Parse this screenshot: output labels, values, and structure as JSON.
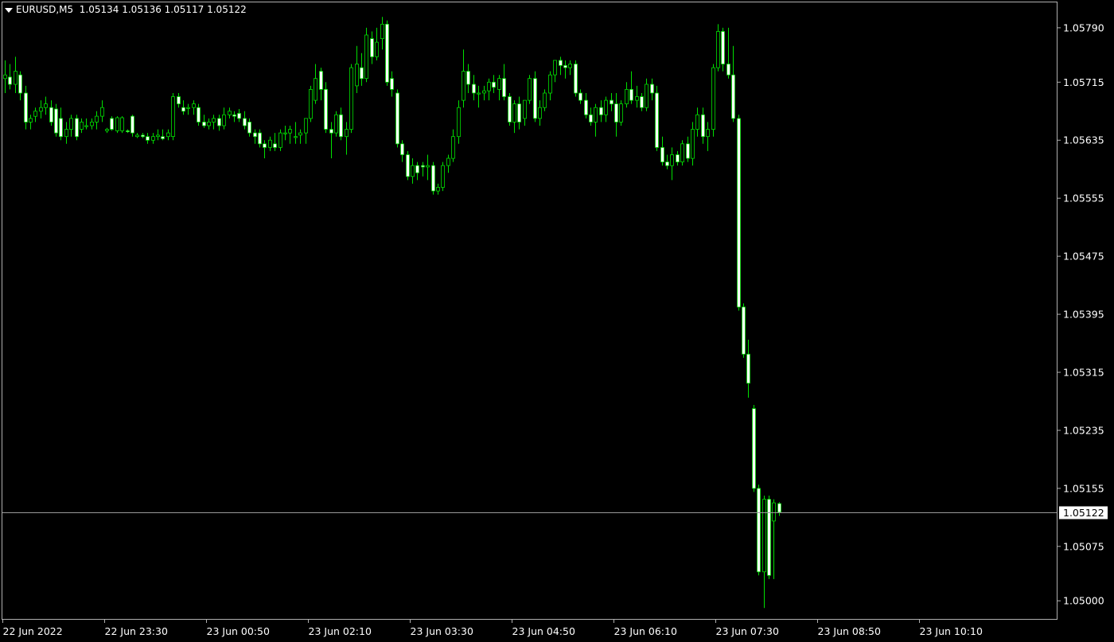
{
  "header": {
    "symbol": "EURUSD,M5",
    "ohlc": "1.05134 1.05136 1.05117 1.05122"
  },
  "chart_data": {
    "type": "candlestick",
    "ylim": [
      1.04975,
      1.05825
    ],
    "yticks": [
      "1.05790",
      "1.05715",
      "1.05635",
      "1.05555",
      "1.05475",
      "1.05395",
      "1.05315",
      "1.05235",
      "1.05155",
      "1.05075",
      "1.05000"
    ],
    "xticks": [
      "22 Jun 2022",
      "22 Jun 23:30",
      "23 Jun 00:50",
      "23 Jun 02:10",
      "23 Jun 03:30",
      "23 Jun 04:50",
      "23 Jun 06:10",
      "23 Jun 07:30",
      "23 Jun 08:50",
      "23 Jun 10:10"
    ],
    "current_price": "1.05122",
    "candles": [
      [
        1.0572,
        1.05745,
        1.057,
        1.05725
      ],
      [
        1.05722,
        1.0574,
        1.05705,
        1.05712
      ],
      [
        1.05712,
        1.0575,
        1.057,
        1.0573
      ],
      [
        1.05725,
        1.0573,
        1.0569,
        1.057
      ],
      [
        1.057,
        1.0571,
        1.0565,
        1.0566
      ],
      [
        1.0566,
        1.0567,
        1.0565,
        1.05665
      ],
      [
        1.05668,
        1.0568,
        1.0566,
        1.05675
      ],
      [
        1.05675,
        1.0569,
        1.05665,
        1.0568
      ],
      [
        1.0568,
        1.05695,
        1.0567,
        1.05685
      ],
      [
        1.0568,
        1.0569,
        1.05655,
        1.0566
      ],
      [
        1.05678,
        1.05685,
        1.0564,
        1.05645
      ],
      [
        1.05665,
        1.0568,
        1.05635,
        1.0564
      ],
      [
        1.0564,
        1.0566,
        1.0563,
        1.0565
      ],
      [
        1.0565,
        1.0567,
        1.0564,
        1.05665
      ],
      [
        1.05665,
        1.0567,
        1.05635,
        1.0564
      ],
      [
        1.0565,
        1.05665,
        1.05645,
        1.0566
      ],
      [
        1.05655,
        1.05665,
        1.0565,
        1.05655
      ],
      [
        1.05655,
        1.05665,
        1.0565,
        1.0566
      ],
      [
        1.0566,
        1.05675,
        1.0565,
        1.05668
      ],
      [
        1.05668,
        1.0569,
        1.0566,
        1.0568
      ],
      [
        1.05648,
        1.05652,
        1.05645,
        1.0565
      ],
      [
        1.05665,
        1.05668,
        1.05648,
        1.0565
      ],
      [
        1.05648,
        1.05668,
        1.05645,
        1.05666
      ],
      [
        1.05648,
        1.05668,
        1.05645,
        1.05666
      ],
      [
        1.05648,
        1.0565,
        1.05645,
        1.05647
      ],
      [
        1.05668,
        1.0567,
        1.0564,
        1.05645
      ],
      [
        1.0564,
        1.05645,
        1.05638,
        1.05642
      ],
      [
        1.05642,
        1.05645,
        1.05638,
        1.0564
      ],
      [
        1.0564,
        1.05645,
        1.0563,
        1.05635
      ],
      [
        1.05635,
        1.05645,
        1.0563,
        1.0564
      ],
      [
        1.0564,
        1.0565,
        1.05635,
        1.05642
      ],
      [
        1.0564,
        1.0565,
        1.05635,
        1.05637
      ],
      [
        1.0564,
        1.0565,
        1.05635,
        1.05645
      ],
      [
        1.0564,
        1.057,
        1.05635,
        1.05695
      ],
      [
        1.05695,
        1.057,
        1.0568,
        1.05685
      ],
      [
        1.0568,
        1.0569,
        1.0567,
        1.05675
      ],
      [
        1.0568,
        1.05685,
        1.0567,
        1.0568
      ],
      [
        1.0568,
        1.0569,
        1.0567,
        1.05685
      ],
      [
        1.0568,
        1.05685,
        1.05655,
        1.0566
      ],
      [
        1.0566,
        1.0567,
        1.05652,
        1.05655
      ],
      [
        1.05655,
        1.05665,
        1.0565,
        1.0566
      ],
      [
        1.0566,
        1.0567,
        1.0565,
        1.05665
      ],
      [
        1.05665,
        1.0567,
        1.05648,
        1.05655
      ],
      [
        1.05655,
        1.0568,
        1.0565,
        1.0567
      ],
      [
        1.0567,
        1.0568,
        1.05665,
        1.05675
      ],
      [
        1.0567,
        1.05675,
        1.0566,
        1.05668
      ],
      [
        1.05672,
        1.05678,
        1.0566,
        1.05665
      ],
      [
        1.05665,
        1.05675,
        1.0565,
        1.05655
      ],
      [
        1.0566,
        1.05665,
        1.0564,
        1.05645
      ],
      [
        1.05645,
        1.0565,
        1.0563,
        1.0564
      ],
      [
        1.05645,
        1.0565,
        1.05625,
        1.0563
      ],
      [
        1.0563,
        1.05635,
        1.0561,
        1.05625
      ],
      [
        1.05625,
        1.0564,
        1.0562,
        1.05635
      ],
      [
        1.0563,
        1.05645,
        1.0562,
        1.05625
      ],
      [
        1.05625,
        1.0565,
        1.0562,
        1.05645
      ],
      [
        1.05645,
        1.05655,
        1.05635,
        1.05645
      ],
      [
        1.05645,
        1.05655,
        1.0563,
        1.0565
      ],
      [
        1.0564,
        1.0566,
        1.0563,
        1.0564
      ],
      [
        1.05642,
        1.0565,
        1.0563,
        1.05645
      ],
      [
        1.05645,
        1.05665,
        1.0563,
        1.05665
      ],
      [
        1.05665,
        1.0571,
        1.0566,
        1.05705
      ],
      [
        1.0569,
        1.0574,
        1.05685,
        1.0572
      ],
      [
        1.0573,
        1.05735,
        1.0569,
        1.05705
      ],
      [
        1.05705,
        1.05715,
        1.05645,
        1.0565
      ],
      [
        1.0565,
        1.0566,
        1.0561,
        1.05645
      ],
      [
        1.05645,
        1.05675,
        1.0564,
        1.0567
      ],
      [
        1.0567,
        1.0568,
        1.05635,
        1.0564
      ],
      [
        1.0564,
        1.0566,
        1.05615,
        1.0565
      ],
      [
        1.0565,
        1.0574,
        1.05645,
        1.05735
      ],
      [
        1.0571,
        1.05765,
        1.057,
        1.0574
      ],
      [
        1.05735,
        1.05755,
        1.0571,
        1.0572
      ],
      [
        1.0572,
        1.0579,
        1.05715,
        1.0578
      ],
      [
        1.05775,
        1.05785,
        1.0574,
        1.0575
      ],
      [
        1.0575,
        1.0579,
        1.05745,
        1.0577
      ],
      [
        1.05775,
        1.05805,
        1.0576,
        1.05795
      ],
      [
        1.05795,
        1.058,
        1.0571,
        1.05715
      ],
      [
        1.0572,
        1.0573,
        1.05695,
        1.05705
      ],
      [
        1.057,
        1.05705,
        1.05625,
        1.0563
      ],
      [
        1.0563,
        1.05635,
        1.05605,
        1.05615
      ],
      [
        1.05615,
        1.0562,
        1.0558,
        1.05585
      ],
      [
        1.05585,
        1.0561,
        1.05575,
        1.056
      ],
      [
        1.056,
        1.05605,
        1.0558,
        1.0559
      ],
      [
        1.056,
        1.05605,
        1.05585,
        1.05598
      ],
      [
        1.05598,
        1.05615,
        1.0558,
        1.056
      ],
      [
        1.056,
        1.05605,
        1.0556,
        1.05565
      ],
      [
        1.05565,
        1.05575,
        1.0556,
        1.0557
      ],
      [
        1.0557,
        1.05605,
        1.05565,
        1.056
      ],
      [
        1.056,
        1.05615,
        1.0559,
        1.0561
      ],
      [
        1.0561,
        1.0565,
        1.05605,
        1.0564
      ],
      [
        1.0564,
        1.0569,
        1.0563,
        1.0568
      ],
      [
        1.0569,
        1.0576,
        1.0568,
        1.0573
      ],
      [
        1.0573,
        1.0574,
        1.057,
        1.05712
      ],
      [
        1.05712,
        1.05725,
        1.0569,
        1.057
      ],
      [
        1.057,
        1.0571,
        1.0568,
        1.057
      ],
      [
        1.057,
        1.0571,
        1.0569,
        1.05703
      ],
      [
        1.05703,
        1.0572,
        1.0569,
        1.05715
      ],
      [
        1.05715,
        1.05725,
        1.057,
        1.05708
      ],
      [
        1.05705,
        1.05725,
        1.0569,
        1.0572
      ],
      [
        1.0572,
        1.0574,
        1.0569,
        1.05695
      ],
      [
        1.05695,
        1.057,
        1.05655,
        1.0566
      ],
      [
        1.0566,
        1.0569,
        1.05645,
        1.05685
      ],
      [
        1.05685,
        1.05695,
        1.0565,
        1.0566
      ],
      [
        1.05665,
        1.0569,
        1.05655,
        1.0569
      ],
      [
        1.0569,
        1.05725,
        1.05685,
        1.0572
      ],
      [
        1.0572,
        1.0573,
        1.0566,
        1.05665
      ],
      [
        1.05665,
        1.0569,
        1.05655,
        1.0568
      ],
      [
        1.0568,
        1.05705,
        1.05675,
        1.057
      ],
      [
        1.057,
        1.0573,
        1.0569,
        1.05725
      ],
      [
        1.05725,
        1.05745,
        1.05715,
        1.05745
      ],
      [
        1.05745,
        1.0575,
        1.05725,
        1.05738
      ],
      [
        1.05738,
        1.05745,
        1.0572,
        1.05735
      ],
      [
        1.05735,
        1.05745,
        1.05725,
        1.0574
      ],
      [
        1.0574,
        1.05745,
        1.05695,
        1.057
      ],
      [
        1.057,
        1.05705,
        1.05685,
        1.0569
      ],
      [
        1.0569,
        1.057,
        1.05665,
        1.0567
      ],
      [
        1.0567,
        1.0568,
        1.05655,
        1.0566
      ],
      [
        1.0566,
        1.05685,
        1.0564,
        1.0568
      ],
      [
        1.0568,
        1.0569,
        1.0566,
        1.0567
      ],
      [
        1.0567,
        1.05695,
        1.0566,
        1.0569
      ],
      [
        1.0569,
        1.057,
        1.05675,
        1.05685
      ],
      [
        1.05685,
        1.057,
        1.0564,
        1.0566
      ],
      [
        1.0566,
        1.0569,
        1.05655,
        1.05685
      ],
      [
        1.05685,
        1.05715,
        1.0568,
        1.05705
      ],
      [
        1.05705,
        1.0573,
        1.05685,
        1.0569
      ],
      [
        1.0569,
        1.0571,
        1.0568,
        1.05695
      ],
      [
        1.05695,
        1.057,
        1.05675,
        1.0568
      ],
      [
        1.0568,
        1.0572,
        1.05675,
        1.05712
      ],
      [
        1.05712,
        1.0572,
        1.0569,
        1.057
      ],
      [
        1.057,
        1.0571,
        1.0562,
        1.05625
      ],
      [
        1.05625,
        1.0564,
        1.056,
        1.05605
      ],
      [
        1.05605,
        1.05615,
        1.05595,
        1.056
      ],
      [
        1.056,
        1.05625,
        1.0558,
        1.05615
      ],
      [
        1.05615,
        1.0562,
        1.056,
        1.05605
      ],
      [
        1.05605,
        1.05635,
        1.056,
        1.0563
      ],
      [
        1.0563,
        1.0564,
        1.05605,
        1.0561
      ],
      [
        1.0561,
        1.0566,
        1.056,
        1.0565
      ],
      [
        1.0565,
        1.0568,
        1.0564,
        1.0567
      ],
      [
        1.0567,
        1.0568,
        1.0563,
        1.0564
      ],
      [
        1.0564,
        1.0566,
        1.0562,
        1.0565
      ],
      [
        1.0565,
        1.0574,
        1.0564,
        1.05735
      ],
      [
        1.05735,
        1.05795,
        1.0573,
        1.05785
      ],
      [
        1.05785,
        1.0579,
        1.0573,
        1.0574
      ],
      [
        1.0574,
        1.0579,
        1.0572,
        1.05725
      ],
      [
        1.05725,
        1.05765,
        1.0566,
        1.05665
      ],
      [
        1.05665,
        1.0567,
        1.054,
        1.05405
      ],
      [
        1.05405,
        1.0541,
        1.05335,
        1.0534
      ],
      [
        1.0534,
        1.0536,
        1.0528,
        1.053
      ],
      [
        1.05265,
        1.0527,
        1.0515,
        1.05155
      ],
      [
        1.05155,
        1.0516,
        1.05035,
        1.0504
      ],
      [
        1.0504,
        1.05145,
        1.0499,
        1.0514
      ],
      [
        1.0514,
        1.05145,
        1.0503,
        1.05035
      ],
      [
        1.0511,
        1.0514,
        1.0503,
        1.05135
      ],
      [
        1.05134,
        1.05136,
        1.05117,
        1.05122
      ]
    ]
  }
}
